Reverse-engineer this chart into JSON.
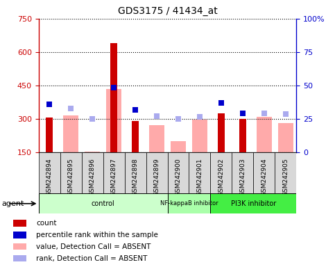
{
  "title": "GDS3175 / 41434_at",
  "samples": [
    "GSM242894",
    "GSM242895",
    "GSM242896",
    "GSM242897",
    "GSM242898",
    "GSM242899",
    "GSM242900",
    "GSM242901",
    "GSM242902",
    "GSM242903",
    "GSM242904",
    "GSM242905"
  ],
  "count_values": [
    305,
    0,
    0,
    640,
    290,
    0,
    0,
    0,
    325,
    300,
    0,
    0
  ],
  "absent_value_bars": [
    0,
    315,
    152,
    435,
    0,
    273,
    200,
    295,
    0,
    0,
    308,
    282
  ],
  "rank_blue_squares": [
    365,
    345,
    300,
    440,
    340,
    312,
    300,
    310,
    370,
    325,
    325,
    322
  ],
  "rank_blue_is_absent": [
    false,
    true,
    true,
    false,
    false,
    true,
    true,
    true,
    false,
    false,
    true,
    true
  ],
  "ylim_left": [
    150,
    750
  ],
  "ylim_right": [
    0,
    100
  ],
  "yticks_left": [
    150,
    300,
    450,
    600,
    750
  ],
  "yticks_right": [
    0,
    25,
    50,
    75,
    100
  ],
  "groups": [
    {
      "label": "control",
      "start": 0,
      "end": 6,
      "color": "#ccffcc"
    },
    {
      "label": "NF-kappaB inhibitor",
      "start": 6,
      "end": 8,
      "color": "#aaffaa"
    },
    {
      "label": "PI3K inhibitor",
      "start": 8,
      "end": 12,
      "color": "#44ee44"
    }
  ],
  "count_color": "#cc0000",
  "absent_value_color": "#ffaaaa",
  "rank_present_color": "#0000cc",
  "rank_absent_color": "#aaaaee",
  "grid_color": "black",
  "sample_bg_color": "#d8d8d8",
  "left_axis_color": "#cc0000",
  "right_axis_color": "#0000cc",
  "legend_items": [
    {
      "color": "#cc0000",
      "label": "count"
    },
    {
      "color": "#0000cc",
      "label": "percentile rank within the sample"
    },
    {
      "color": "#ffaaaa",
      "label": "value, Detection Call = ABSENT"
    },
    {
      "color": "#aaaaee",
      "label": "rank, Detection Call = ABSENT"
    }
  ]
}
